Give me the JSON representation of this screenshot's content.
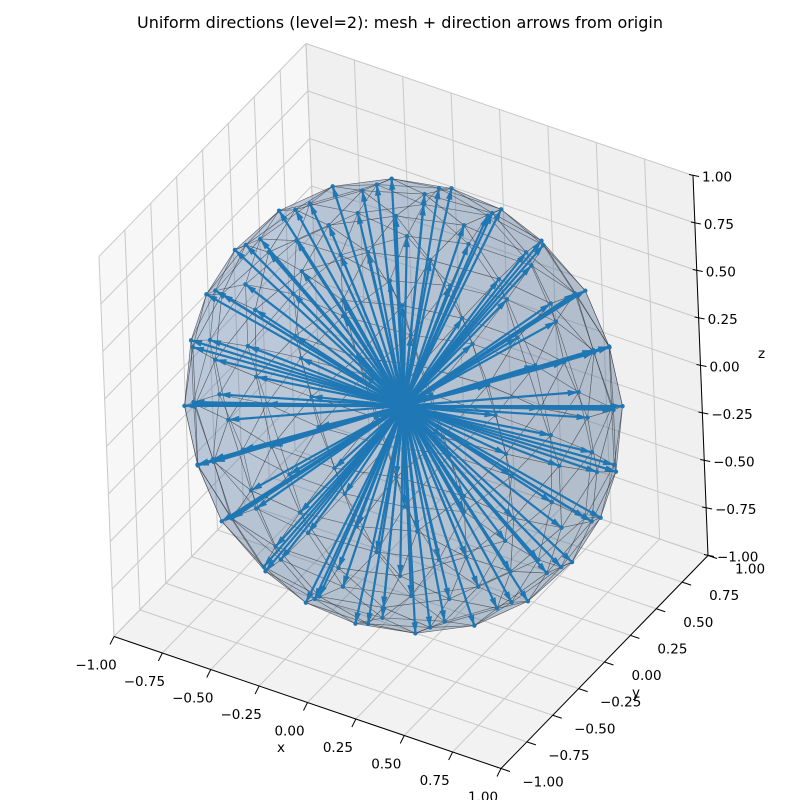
{
  "chart_data": {
    "type": "scatter",
    "subtype": "3d-mesh-quiver",
    "title": "Uniform directions (level=2): mesh + direction arrows from origin",
    "xlabel": "x",
    "ylabel": "y",
    "zlabel": "z",
    "xlim": [
      -1.0,
      1.0
    ],
    "ylim": [
      -1.0,
      1.0
    ],
    "zlim": [
      -1.0,
      1.0
    ],
    "xticks": [
      "−1.00",
      "−0.75",
      "−0.50",
      "−0.25",
      "0.00",
      "0.25",
      "0.50",
      "0.75",
      "1.00"
    ],
    "yticks": [
      "−1.00",
      "−0.75",
      "−0.50",
      "−0.25",
      "0.00",
      "0.25",
      "0.50",
      "0.75",
      "1.00"
    ],
    "zticks": [
      "−1.00",
      "−0.75",
      "−0.50",
      "−0.25",
      "0.00",
      "0.25",
      "0.50",
      "0.75",
      "1.00"
    ],
    "grid": true,
    "mesh": {
      "shape": "geodesic sphere (icosphere subdivision level 2)",
      "radius": 1.0,
      "face_color": "#1f77b4",
      "face_alpha": 0.3,
      "edge_color": "#333333"
    },
    "arrows": {
      "origin": [
        0,
        0,
        0
      ],
      "length": 1.0,
      "count_approx": 162,
      "color": "#1f77b4",
      "description": "unit direction vectors from origin to each mesh vertex"
    },
    "view": {
      "elev": 30,
      "azim": -60
    }
  },
  "colors": {
    "accent": "#1f77b4",
    "pane": "#f2f2f2",
    "grid": "#c8c8c8",
    "axis": "#000000"
  }
}
